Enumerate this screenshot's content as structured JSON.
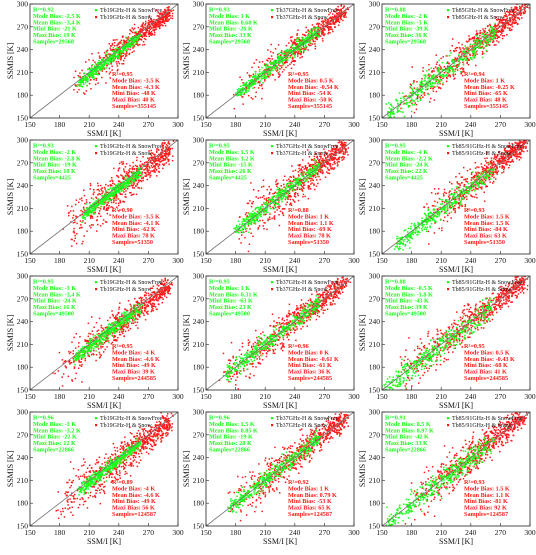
{
  "axes": {
    "xlabel": "SSM/I [K]",
    "ylabel": "SSMIS [K]",
    "ticks": [
      "150",
      "180",
      "210",
      "240",
      "270",
      "300"
    ],
    "tick_values": [
      150,
      180,
      210,
      240,
      270,
      300
    ],
    "range": [
      150,
      300
    ]
  },
  "colors": {
    "red": "#ff1a1a",
    "green": "#1aff1a",
    "frame": "#222222",
    "diag": "#777777"
  },
  "chart_data": [
    {
      "type": "scatter",
      "row": 0,
      "col": 0,
      "legend": [
        "Tb19GHz-H & SnowFree",
        "Tb19GHz-H & Snow"
      ],
      "green_stats": [
        "R²=0.92",
        "Mode Bias: -2.5 K",
        "Mean Bias: -3.4 K",
        "Mini Bias: -21 K",
        "Maxi Bias: 19 K",
        "Samples=29568"
      ],
      "red_stats": [
        "R²=0.95",
        "Mode Bias: -3.5 K",
        "Mean Bias: -4.3 K",
        "Mini Bias: -48 K",
        "Maxi Bias: 40 K",
        "Samples=355145"
      ],
      "red_cloud": {
        "x0": 195,
        "x1": 292,
        "spread": 9,
        "offset": -3
      },
      "green_cloud": {
        "x0": 200,
        "x1": 260,
        "spread": 4,
        "offset": -3
      }
    },
    {
      "type": "scatter",
      "row": 0,
      "col": 1,
      "legend": [
        "Th37GHz-H & SnowFree",
        "Tb37GHz-H & Snow"
      ],
      "green_stats": [
        "R²=0.93",
        "Mode Bias: 1 K",
        "Mean Bias: 0.68 K",
        "Mini Bias: -26 K",
        "Maxi Bias: 33 K",
        "Samples=29568"
      ],
      "red_stats": [
        "R²=0.95",
        "Mode Bias: 0.5 K",
        "Mean Bias: -0.54 K",
        "Mini Bias: -54 K",
        "Maxi Bias: -50 K",
        "Samples=355145"
      ],
      "red_cloud": {
        "x0": 180,
        "x1": 292,
        "spread": 9,
        "offset": 0
      },
      "green_cloud": {
        "x0": 180,
        "x1": 265,
        "spread": 5,
        "offset": 1
      }
    },
    {
      "type": "scatter",
      "row": 0,
      "col": 2,
      "legend": [
        "Th85GHz-H & SnowFree",
        "Tb85GHz-H & Snow"
      ],
      "green_stats": [
        "R²=0.88",
        "Mode Bias: -2 K",
        "Mean Bias: -3 K",
        "Mini Bias: -39 K",
        "Maxi Bias: 36 K",
        "Samples=29568"
      ],
      "red_stats": [
        "R²=0.94",
        "Mode Bias: 1 K",
        "Mean Bias: -0.25 K",
        "Mini Bias: -65 K",
        "Maxi Bias: 48 K",
        "Samples=355145"
      ],
      "red_cloud": {
        "x0": 170,
        "x1": 295,
        "spread": 11,
        "offset": 0
      },
      "green_cloud": {
        "x0": 155,
        "x1": 265,
        "spread": 8,
        "offset": -2
      }
    },
    {
      "type": "scatter",
      "row": 1,
      "col": 0,
      "legend": [
        "Tb19GHz-H & SnowFree",
        "Tb19GHz-H & Snow"
      ],
      "green_stats": [
        "R²=0.93",
        "Mode Bias: -2 K",
        "Mean Bias: -2.8 K",
        "Mini Bias: -19 K",
        "Maxi Bias: 18 K",
        "Samples=4425"
      ],
      "red_stats": [
        "R²=0.90",
        "Mode Bias: -3.5 K",
        "Mean Bias: -4.1 K",
        "Mini Bias: -62 K",
        "Maxi Bias: 78 K",
        "Samples=51350"
      ],
      "red_cloud": {
        "x0": 185,
        "x1": 292,
        "spread": 13,
        "offset": -4
      },
      "green_cloud": {
        "x0": 205,
        "x1": 262,
        "spread": 4,
        "offset": -3
      }
    },
    {
      "type": "scatter",
      "row": 1,
      "col": 1,
      "legend": [
        "Tb37GHz-H & SnowFree",
        "Tb37GHz-H & Snow"
      ],
      "green_stats": [
        "R²=0.95",
        "Mode Bias: 1.5 K",
        "Mean Bias: 1.2 K",
        "Mini Bias: -15 K",
        "Maxi Bias: 26 K",
        "Samples=4425"
      ],
      "red_stats": [
        "R²=0.88",
        "Mode Bias: 1 K",
        "Mean Bias: 1.1 K",
        "Mini Bias: -69 K",
        "Maxi Bias: 78 K",
        "Samples=51350"
      ],
      "red_cloud": {
        "x0": 180,
        "x1": 292,
        "spread": 13,
        "offset": 1
      },
      "green_cloud": {
        "x0": 180,
        "x1": 265,
        "spread": 5,
        "offset": 1
      }
    },
    {
      "type": "scatter",
      "row": 1,
      "col": 2,
      "legend": [
        "Tb85/91GHz-H & SnowFree",
        "Tb85/91GHz-H & Snow"
      ],
      "green_stats": [
        "R²=0.95",
        "Mode Bias: -4 K",
        "Mean Bias: -2.2 K",
        "Mini Bias: -24 K",
        "Maxi Bias: 22 K",
        "Samples=4425"
      ],
      "red_stats": [
        "R²=0.93",
        "Mode Bias: 1.5 K",
        "Mean Bias: 1.5 K",
        "Mini Bias: -84 K",
        "Maxi Bias: 63 K",
        "Samples=51350"
      ],
      "red_cloud": {
        "x0": 190,
        "x1": 295,
        "spread": 11,
        "offset": 1
      },
      "green_cloud": {
        "x0": 165,
        "x1": 262,
        "spread": 6,
        "offset": -2
      }
    },
    {
      "type": "scatter",
      "row": 2,
      "col": 0,
      "legend": [
        "Tb19GHz-H & SnowFree",
        "Tb19GHz-H & Snow"
      ],
      "green_stats": [
        "R²=0.95",
        "Mode Bias: -3 K",
        "Mean Bias: -3.4 K",
        "Mini Bias: -24 K",
        "Maxi Bias: 16 K",
        "Samples=49500"
      ],
      "red_stats": [
        "R²=0.95",
        "Mode Bias: -4 K",
        "Mean Bias: -4.6 K",
        "Mini Bias: -49 K",
        "Maxi Bias: 39 K",
        "Samples=244585"
      ],
      "red_cloud": {
        "x0": 175,
        "x1": 292,
        "spread": 11,
        "offset": -4
      },
      "green_cloud": {
        "x0": 195,
        "x1": 262,
        "spread": 5,
        "offset": -3
      }
    },
    {
      "type": "scatter",
      "row": 2,
      "col": 1,
      "legend": [
        "Tb37GHz-H & SnowFree",
        "Tb37GHz-H & Snow"
      ],
      "green_stats": [
        "R²=0.95",
        "Mode Bias: 1 K",
        "Mean Bias: 0.31 K",
        "Mini Bias: -63 K",
        "Maxi Bias: 23 K",
        "Samples=49500"
      ],
      "red_stats": [
        "R²=0.96",
        "Mode Bias: 0 K",
        "Mean Bias: -0.61 K",
        "Mini Bias: -61 K",
        "Maxi Bias: 36 K",
        "Samples=244585"
      ],
      "red_cloud": {
        "x0": 165,
        "x1": 292,
        "spread": 11,
        "offset": 0
      },
      "green_cloud": {
        "x0": 170,
        "x1": 265,
        "spread": 6,
        "offset": 0
      }
    },
    {
      "type": "scatter",
      "row": 2,
      "col": 2,
      "legend": [
        "Tb85/91GHz-H & SnowFree",
        "Tb85/91GHz-H & Snow"
      ],
      "green_stats": [
        "R²=0.88",
        "Mode Bias: -0.5 K",
        "Mean Bias: -1.8 K",
        "Mini Bias: -43 K",
        "Maxi Bias: 39 K",
        "Samples=49500"
      ],
      "red_stats": [
        "R²=0.95",
        "Mode Bias: 0.5 K",
        "Mean Bias: -0.43 K",
        "Mini Bias: -68 K",
        "Maxi Bias: 41 K",
        "Samples=244585"
      ],
      "red_cloud": {
        "x0": 165,
        "x1": 295,
        "spread": 11,
        "offset": 0
      },
      "green_cloud": {
        "x0": 152,
        "x1": 262,
        "spread": 8,
        "offset": -2
      }
    },
    {
      "type": "scatter",
      "row": 3,
      "col": 0,
      "legend": [
        "Tb19GHz-H & SnowFree",
        "Tb19GHz-H & Snow"
      ],
      "green_stats": [
        "R²=0.96",
        "Mode Bias: -3 K",
        "Mean Bias: -3.2 K",
        "Mini Bias: -22 K",
        "Maxi Bias: 12 K",
        "Samples=22866"
      ],
      "red_stats": [
        "R²=0.89",
        "Mode Bias: -4 K",
        "Mean Bias: -4.6 K",
        "Mini Bias: -49 K",
        "Maxi Bias: 56 K",
        "Samples=124587"
      ],
      "red_cloud": {
        "x0": 175,
        "x1": 292,
        "spread": 13,
        "offset": -4
      },
      "green_cloud": {
        "x0": 200,
        "x1": 262,
        "spread": 4,
        "offset": -3
      }
    },
    {
      "type": "scatter",
      "row": 3,
      "col": 1,
      "legend": [
        "Tb37GHz-H & SnowFree",
        "Tb37GHz-H & Snow"
      ],
      "green_stats": [
        "R²=0.96",
        "Mode Bias: 1.5 K",
        "Mean Bias: 0.85 K",
        "Mini Bias: -19 K",
        "Maxi Bias: 28 K",
        "Samples=22866"
      ],
      "red_stats": [
        "R²=0.92",
        "Mode Bias: 1 K",
        "Mean Bias: 0.79 K",
        "Mini Bias: -53 K",
        "Maxi Bias: 65 K",
        "Samples=124587"
      ],
      "red_cloud": {
        "x0": 170,
        "x1": 292,
        "spread": 12,
        "offset": 1
      },
      "green_cloud": {
        "x0": 175,
        "x1": 265,
        "spread": 6,
        "offset": 1
      }
    },
    {
      "type": "scatter",
      "row": 3,
      "col": 2,
      "legend": [
        "Tb85/91GHz-H & SnowFree",
        "Tb85/91GHz-H & Snow"
      ],
      "green_stats": [
        "R²=0.91",
        "Mode Bias: 0.5 K",
        "Mean Bias: 0.97 K",
        "Mini Bias: -42 K",
        "Maxi Bias: 33 K",
        "Samples=22866"
      ],
      "red_stats": [
        "R²=0.93",
        "Mode Bias: 1.5 K",
        "Mean Bias: 1.1 K",
        "Mini Bias: -81 K",
        "Maxi Bias: 92 K",
        "Samples=124587"
      ],
      "red_cloud": {
        "x0": 175,
        "x1": 295,
        "spread": 12,
        "offset": 1
      },
      "green_cloud": {
        "x0": 155,
        "x1": 262,
        "spread": 8,
        "offset": -1
      }
    }
  ]
}
